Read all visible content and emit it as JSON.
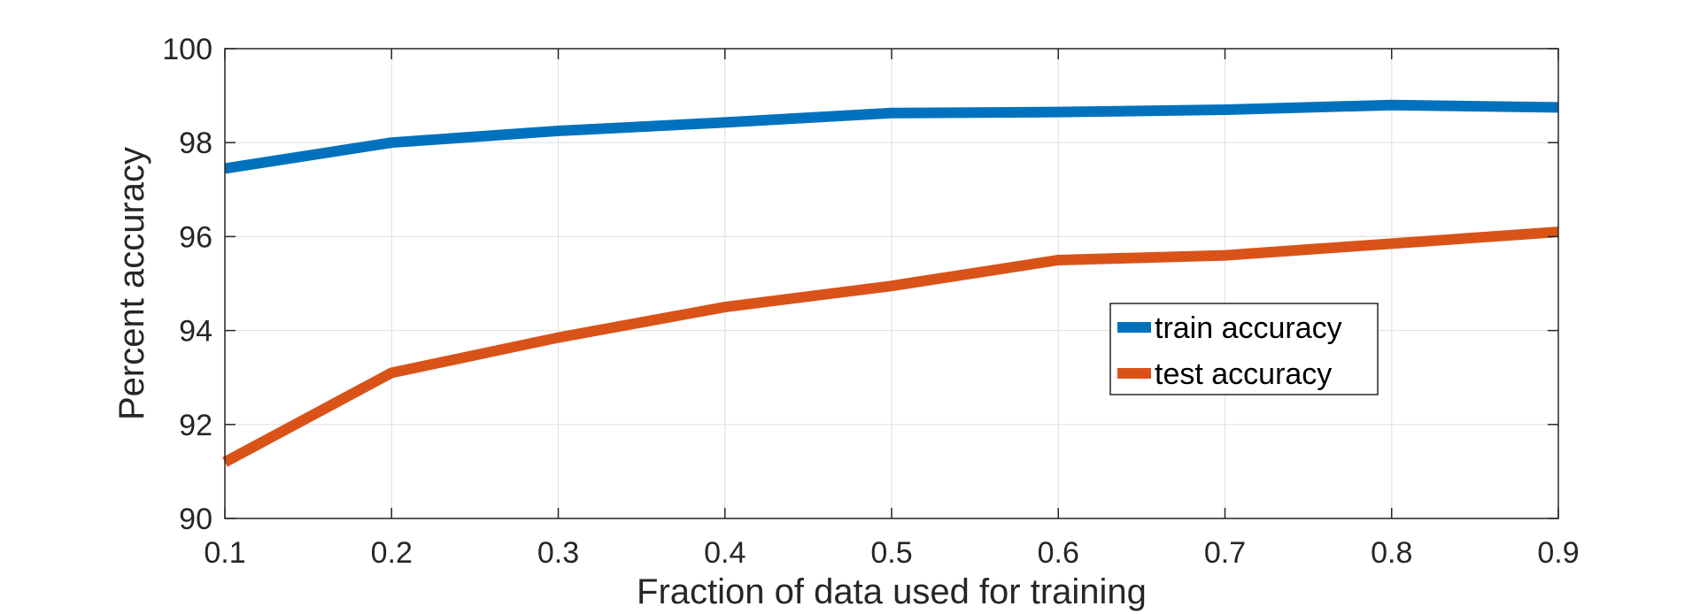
{
  "chart_data": {
    "type": "line",
    "title": "",
    "xlabel": "Fraction of data used for training",
    "ylabel": "Percent accuracy",
    "x": [
      0.1,
      0.2,
      0.3,
      0.4,
      0.5,
      0.6,
      0.7,
      0.8,
      0.9
    ],
    "x_ticks": [
      "0.1",
      "0.2",
      "0.3",
      "0.4",
      "0.5",
      "0.6",
      "0.7",
      "0.8",
      "0.9"
    ],
    "y_ticks": [
      "90",
      "92",
      "94",
      "96",
      "98",
      "100"
    ],
    "xlim": [
      0.1,
      0.9
    ],
    "ylim": [
      90,
      100
    ],
    "grid": true,
    "legend_position": "center-right",
    "series": [
      {
        "name": "train accuracy",
        "color": "#0072BD",
        "values": [
          97.45,
          98.0,
          98.25,
          98.43,
          98.63,
          98.65,
          98.7,
          98.8,
          98.75
        ]
      },
      {
        "name": "test accuracy",
        "color": "#D95319",
        "values": [
          91.2,
          93.1,
          93.85,
          94.5,
          94.95,
          95.5,
          95.6,
          95.85,
          96.1
        ]
      }
    ]
  }
}
